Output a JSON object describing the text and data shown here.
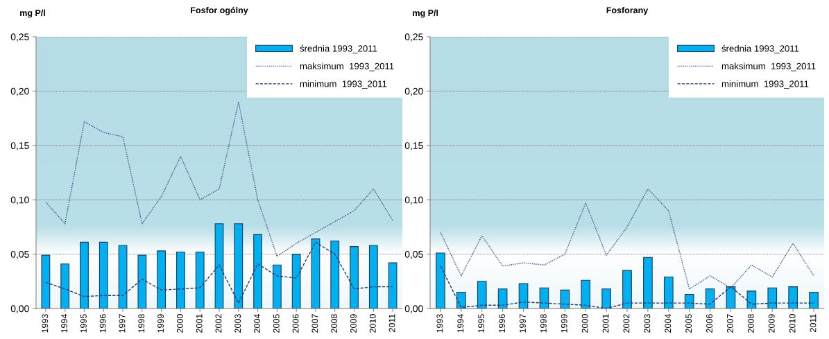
{
  "chart_data": [
    {
      "type": "bar",
      "title": "Fosfor ogólny",
      "ylabel": "mg P/l",
      "categories": [
        "1993",
        "1994",
        "1995",
        "1996",
        "1997",
        "1998",
        "1999",
        "2000",
        "2001",
        "2002",
        "2003",
        "2004",
        "2005",
        "2006",
        "2007",
        "2008",
        "2009",
        "2010",
        "2011"
      ],
      "series": [
        {
          "name": "średnia 1993_2011",
          "color": "#00b0f0",
          "values": [
            0.049,
            0.041,
            0.061,
            0.061,
            0.058,
            0.049,
            0.053,
            0.052,
            0.052,
            0.078,
            0.078,
            0.068,
            0.04,
            0.05,
            0.064,
            0.062,
            0.057,
            0.058,
            0.042
          ]
        },
        {
          "name": "maksimum  1993_2011",
          "type": "line",
          "line_style": "dotted",
          "color": "#44548a",
          "values": [
            0.098,
            0.078,
            0.172,
            0.162,
            0.158,
            0.078,
            0.103,
            0.14,
            0.1,
            0.11,
            0.19,
            0.1,
            0.048,
            0.06,
            0.07,
            0.08,
            0.09,
            0.11,
            0.081
          ]
        },
        {
          "name": "minimum  1993_2011",
          "type": "line",
          "line_style": "dashed",
          "color": "#1f3570",
          "values": [
            0.024,
            0.018,
            0.011,
            0.012,
            0.012,
            0.027,
            0.017,
            0.018,
            0.019,
            0.04,
            0.005,
            0.041,
            0.03,
            0.028,
            0.061,
            0.05,
            0.018,
            0.02,
            0.02
          ]
        }
      ],
      "ylim": [
        0,
        0.25
      ],
      "yticks": [
        {
          "value": 0,
          "label": "0,00"
        },
        {
          "value": 0.05,
          "label": "0,05"
        },
        {
          "value": 0.1,
          "label": "0,10"
        },
        {
          "value": 0.15,
          "label": "0,15"
        },
        {
          "value": 0.2,
          "label": "0,20"
        },
        {
          "value": 0.25,
          "label": "0,25"
        }
      ],
      "grid": "y",
      "legend": "top right"
    },
    {
      "type": "bar",
      "title": "Fosforany",
      "ylabel": "mg P/l",
      "categories": [
        "1993",
        "1994",
        "1995",
        "1996",
        "1997",
        "1998",
        "1999",
        "2000",
        "2001",
        "2002",
        "2003",
        "2004",
        "2005",
        "2006",
        "2007",
        "2008",
        "2009",
        "2010",
        "2011"
      ],
      "series": [
        {
          "name": "średnia 1993_2011",
          "color": "#00b0f0",
          "values": [
            0.051,
            0.015,
            0.025,
            0.018,
            0.023,
            0.019,
            0.017,
            0.026,
            0.018,
            0.035,
            0.047,
            0.029,
            0.013,
            0.018,
            0.02,
            0.016,
            0.019,
            0.02,
            0.015
          ]
        },
        {
          "name": "maksimum  1993_2011",
          "type": "line",
          "line_style": "dotted",
          "color": "#44548a",
          "values": [
            0.07,
            0.03,
            0.067,
            0.039,
            0.042,
            0.04,
            0.05,
            0.097,
            0.049,
            0.075,
            0.11,
            0.09,
            0.018,
            0.03,
            0.019,
            0.04,
            0.029,
            0.06,
            0.03
          ]
        },
        {
          "name": "minimum  1993_2011",
          "type": "line",
          "line_style": "dashed",
          "color": "#1f3570",
          "values": [
            0.039,
            0.001,
            0.003,
            0.003,
            0.006,
            0.005,
            0.004,
            0.003,
            0.0,
            0.005,
            0.005,
            0.005,
            0.005,
            0.004,
            0.02,
            0.004,
            0.005,
            0.005,
            0.005
          ]
        }
      ],
      "ylim": [
        0,
        0.25
      ],
      "yticks": [
        {
          "value": 0,
          "label": "0,00"
        },
        {
          "value": 0.05,
          "label": "0,05"
        },
        {
          "value": 0.1,
          "label": "0,10"
        },
        {
          "value": 0.15,
          "label": "0,15"
        },
        {
          "value": 0.2,
          "label": "0,20"
        },
        {
          "value": 0.25,
          "label": "0,25"
        }
      ],
      "grid": "y",
      "legend": "top right"
    }
  ]
}
